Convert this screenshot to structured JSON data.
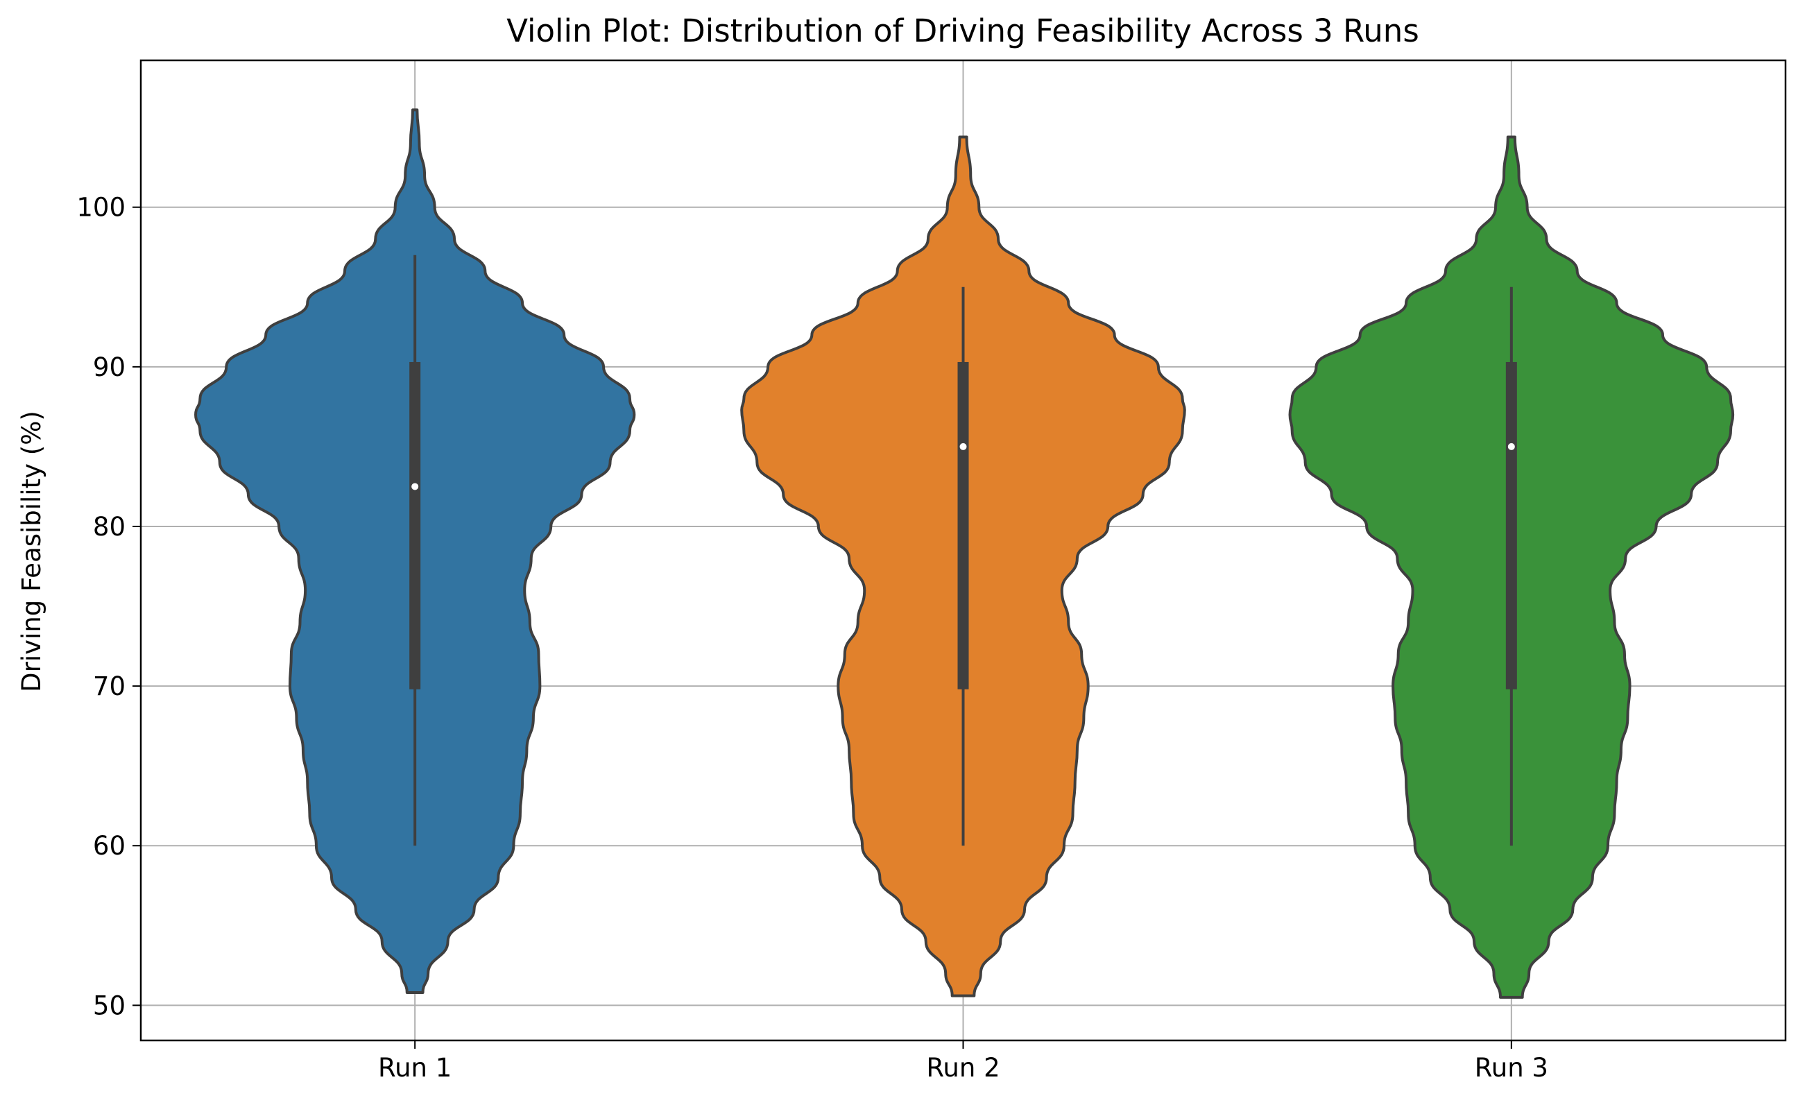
{
  "chart_data": {
    "type": "violin",
    "title": "Violin Plot: Distribution of Driving Feasibility Across 3 Runs",
    "xlabel": "",
    "ylabel": "Driving Feasibility (%)",
    "ylim": [
      47.8,
      109.2
    ],
    "yticks": [
      50,
      60,
      70,
      80,
      90,
      100
    ],
    "grid": true,
    "categories": [
      "Run 1",
      "Run 2",
      "Run 3"
    ],
    "series": [
      {
        "name": "Run 1",
        "color": "#3274a1",
        "min": 60,
        "q1": 69.8,
        "median": 82.5,
        "q3": 90.3,
        "max": 97,
        "kde_range": [
          50.8,
          106.1
        ],
        "profile": [
          [
            50.8,
            0.018
          ],
          [
            52,
            0.03
          ],
          [
            54,
            0.075
          ],
          [
            56,
            0.135
          ],
          [
            58,
            0.19
          ],
          [
            60,
            0.225
          ],
          [
            62,
            0.24
          ],
          [
            64,
            0.245
          ],
          [
            66,
            0.255
          ],
          [
            68,
            0.27
          ],
          [
            70,
            0.285
          ],
          [
            72,
            0.282
          ],
          [
            74,
            0.262
          ],
          [
            76,
            0.25
          ],
          [
            78,
            0.265
          ],
          [
            80,
            0.31
          ],
          [
            82,
            0.38
          ],
          [
            84,
            0.445
          ],
          [
            86,
            0.49
          ],
          [
            87,
            0.5
          ],
          [
            88,
            0.49
          ],
          [
            90,
            0.43
          ],
          [
            92,
            0.34
          ],
          [
            94,
            0.245
          ],
          [
            96,
            0.16
          ],
          [
            98,
            0.09
          ],
          [
            100,
            0.045
          ],
          [
            102,
            0.022
          ],
          [
            104,
            0.01
          ],
          [
            106.1,
            0.005
          ]
        ]
      },
      {
        "name": "Run 2",
        "color": "#e1812c",
        "min": 60,
        "q1": 69.8,
        "median": 85,
        "q3": 90.3,
        "max": 95,
        "kde_range": [
          50.6,
          104.4
        ],
        "profile": [
          [
            50.6,
            0.025
          ],
          [
            52,
            0.04
          ],
          [
            54,
            0.085
          ],
          [
            56,
            0.14
          ],
          [
            58,
            0.19
          ],
          [
            60,
            0.23
          ],
          [
            62,
            0.25
          ],
          [
            64,
            0.255
          ],
          [
            66,
            0.26
          ],
          [
            68,
            0.275
          ],
          [
            70,
            0.285
          ],
          [
            72,
            0.27
          ],
          [
            74,
            0.24
          ],
          [
            76,
            0.225
          ],
          [
            78,
            0.26
          ],
          [
            80,
            0.33
          ],
          [
            82,
            0.41
          ],
          [
            84,
            0.47
          ],
          [
            86,
            0.5
          ],
          [
            87.3,
            0.505
          ],
          [
            88,
            0.5
          ],
          [
            90,
            0.445
          ],
          [
            92,
            0.345
          ],
          [
            94,
            0.24
          ],
          [
            96,
            0.15
          ],
          [
            98,
            0.08
          ],
          [
            100,
            0.036
          ],
          [
            102,
            0.017
          ],
          [
            104.4,
            0.008
          ]
        ]
      },
      {
        "name": "Run 3",
        "color": "#3a923a",
        "min": 60,
        "q1": 69.8,
        "median": 85,
        "q3": 90.3,
        "max": 95,
        "kde_range": [
          50.5,
          104.4
        ],
        "profile": [
          [
            50.5,
            0.025
          ],
          [
            52,
            0.04
          ],
          [
            54,
            0.085
          ],
          [
            56,
            0.14
          ],
          [
            58,
            0.185
          ],
          [
            60,
            0.22
          ],
          [
            62,
            0.235
          ],
          [
            64,
            0.24
          ],
          [
            66,
            0.25
          ],
          [
            68,
            0.265
          ],
          [
            70,
            0.27
          ],
          [
            72,
            0.258
          ],
          [
            74,
            0.235
          ],
          [
            76,
            0.225
          ],
          [
            78,
            0.26
          ],
          [
            80,
            0.33
          ],
          [
            82,
            0.41
          ],
          [
            84,
            0.47
          ],
          [
            86,
            0.5
          ],
          [
            87,
            0.505
          ],
          [
            88,
            0.5
          ],
          [
            90,
            0.445
          ],
          [
            92,
            0.345
          ],
          [
            94,
            0.24
          ],
          [
            96,
            0.15
          ],
          [
            98,
            0.08
          ],
          [
            100,
            0.036
          ],
          [
            102,
            0.017
          ],
          [
            104.4,
            0.008
          ]
        ]
      }
    ]
  }
}
